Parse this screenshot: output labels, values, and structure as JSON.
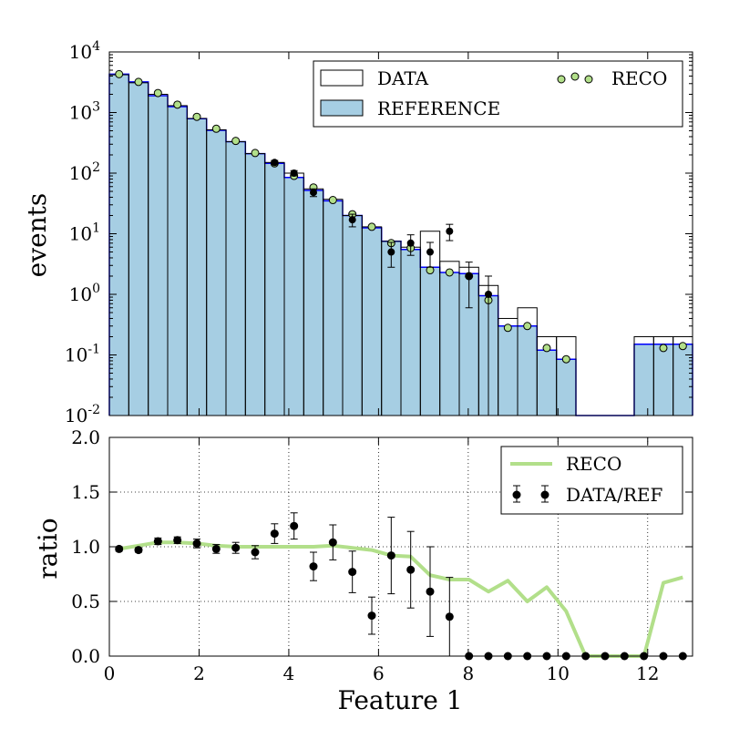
{
  "colors": {
    "reference_fill": "#a6cee3",
    "reference_edge": "#0000ff",
    "data_edge": "#000000",
    "reco_marker": "#b2df8a",
    "reco_line": "#b2df8a",
    "data_points": "#000000",
    "grid": "#000000"
  },
  "chart_data": [
    {
      "type": "bar",
      "ylabel": "events",
      "yscale": "log",
      "xlim": [
        0,
        13
      ],
      "ylim": [
        0.01,
        10000
      ],
      "yticks": [
        "10^-2",
        "10^-1",
        "10^0",
        "10^1",
        "10^2",
        "10^3",
        "10^4"
      ],
      "legend_position": "top-right",
      "legend": {
        "data_label": "DATA",
        "reference_label": "REFERENCE",
        "reco_label": "RECO"
      },
      "bin_edges": [
        0,
        0.433,
        0.867,
        1.3,
        1.733,
        2.167,
        2.6,
        3.033,
        3.467,
        3.9,
        4.333,
        4.767,
        5.2,
        5.633,
        6.067,
        6.5,
        6.933,
        7.367,
        7.8,
        8.233,
        8.667,
        9.1,
        9.533,
        9.967,
        10.4,
        10.833,
        11.267,
        11.7,
        12.133,
        12.567,
        13.0
      ],
      "series": [
        {
          "name": "DATA",
          "style": "step-outline",
          "values": [
            4200,
            3100,
            2000,
            1300,
            800,
            520,
            330,
            210,
            150,
            100,
            55,
            37,
            20,
            13,
            7.5,
            6.0,
            11,
            3.5,
            2.8,
            1.4,
            0.4,
            0.6,
            0.2,
            0.2,
            0,
            0,
            0,
            0.2,
            0.2,
            0.2
          ]
        },
        {
          "name": "REFERENCE",
          "style": "filled-step",
          "values": [
            4300,
            3200,
            1900,
            1250,
            790,
            510,
            330,
            210,
            145,
            85,
            52,
            35,
            20,
            12.5,
            7.5,
            5.5,
            2.8,
            2.3,
            2.2,
            0.95,
            0.3,
            0.3,
            0.12,
            0.085,
            0,
            0,
            0,
            0.15,
            0.15,
            0.15
          ]
        },
        {
          "name": "RECO",
          "style": "markers",
          "x": [
            0.217,
            0.65,
            1.083,
            1.517,
            1.95,
            2.383,
            2.817,
            3.25,
            3.683,
            4.117,
            4.55,
            4.983,
            5.417,
            5.85,
            6.283,
            6.717,
            7.15,
            7.583,
            8.017,
            8.45,
            8.883,
            9.317,
            9.75,
            10.183,
            12.35,
            12.783
          ],
          "values": [
            4300,
            3200,
            2100,
            1350,
            850,
            540,
            340,
            215,
            145,
            90,
            58,
            36,
            21,
            13,
            7,
            5.8,
            2.5,
            2.3,
            2.0,
            0.8,
            0.28,
            0.3,
            0.13,
            0.085,
            0.13,
            0.14
          ]
        },
        {
          "name": "DATA points",
          "style": "errorbar",
          "x": [
            3.683,
            4.117,
            4.55,
            5.417,
            6.283,
            6.717,
            7.15,
            7.583,
            8.017,
            8.45
          ],
          "values": [
            150,
            100,
            48,
            17,
            5,
            7,
            5,
            11,
            2,
            1
          ],
          "errors": [
            12,
            10,
            7,
            4,
            2.2,
            2.6,
            2.2,
            3.3,
            1.4,
            1.0
          ]
        }
      ]
    },
    {
      "type": "line",
      "xlabel": "Feature 1",
      "ylabel": "ratio",
      "xlim": [
        0,
        13
      ],
      "ylim": [
        0,
        2.0
      ],
      "xticks": [
        0,
        2,
        4,
        6,
        8,
        10,
        12
      ],
      "yticks": [
        0.0,
        0.5,
        1.0,
        1.5,
        2.0
      ],
      "grid": true,
      "legend_position": "top-right",
      "legend": {
        "reco_label": "RECO",
        "ratio_label": "DATA/REF"
      },
      "series": [
        {
          "name": "RECO",
          "style": "line",
          "x": [
            0.217,
            0.65,
            1.083,
            1.517,
            1.95,
            2.383,
            2.817,
            3.25,
            3.683,
            4.117,
            4.55,
            4.983,
            5.417,
            5.85,
            6.283,
            6.717,
            7.15,
            7.583,
            8.017,
            8.45,
            8.883,
            9.317,
            9.75,
            10.183,
            10.617,
            11.05,
            11.483,
            11.917,
            12.35,
            12.783
          ],
          "values": [
            0.98,
            1.01,
            1.04,
            1.04,
            1.03,
            1.01,
            1.0,
            1.0,
            1.0,
            1.0,
            1.0,
            1.01,
            0.99,
            0.97,
            0.92,
            0.91,
            0.74,
            0.7,
            0.7,
            0.59,
            0.69,
            0.5,
            0.63,
            0.41,
            0.0,
            0.0,
            0.0,
            0.0,
            0.67,
            0.72
          ]
        },
        {
          "name": "DATA/REF",
          "style": "errorbar",
          "x": [
            0.217,
            0.65,
            1.083,
            1.517,
            1.95,
            2.383,
            2.817,
            3.25,
            3.683,
            4.117,
            4.55,
            4.983,
            5.417,
            5.85,
            6.283,
            6.717,
            7.15,
            7.583,
            8.017,
            8.45,
            8.883,
            9.317,
            9.75,
            10.183,
            10.617,
            11.05,
            11.483,
            11.917,
            12.35,
            12.783
          ],
          "values": [
            0.98,
            0.97,
            1.05,
            1.06,
            1.03,
            0.98,
            0.99,
            0.95,
            1.12,
            1.19,
            0.82,
            1.04,
            0.77,
            0.37,
            0.92,
            0.79,
            0.59,
            0.36,
            0.0,
            0.0,
            0.0,
            0.0,
            0.0,
            0.0,
            0.0,
            0.0,
            0.0,
            0.0,
            0.0,
            0.0
          ],
          "errors": [
            0.02,
            0.02,
            0.03,
            0.03,
            0.04,
            0.04,
            0.05,
            0.06,
            0.09,
            0.12,
            0.13,
            0.16,
            0.19,
            0.17,
            0.35,
            0.35,
            0.41,
            0.36,
            0,
            0,
            0,
            0,
            0,
            0,
            0,
            0,
            0,
            0,
            0,
            0
          ]
        }
      ]
    }
  ]
}
